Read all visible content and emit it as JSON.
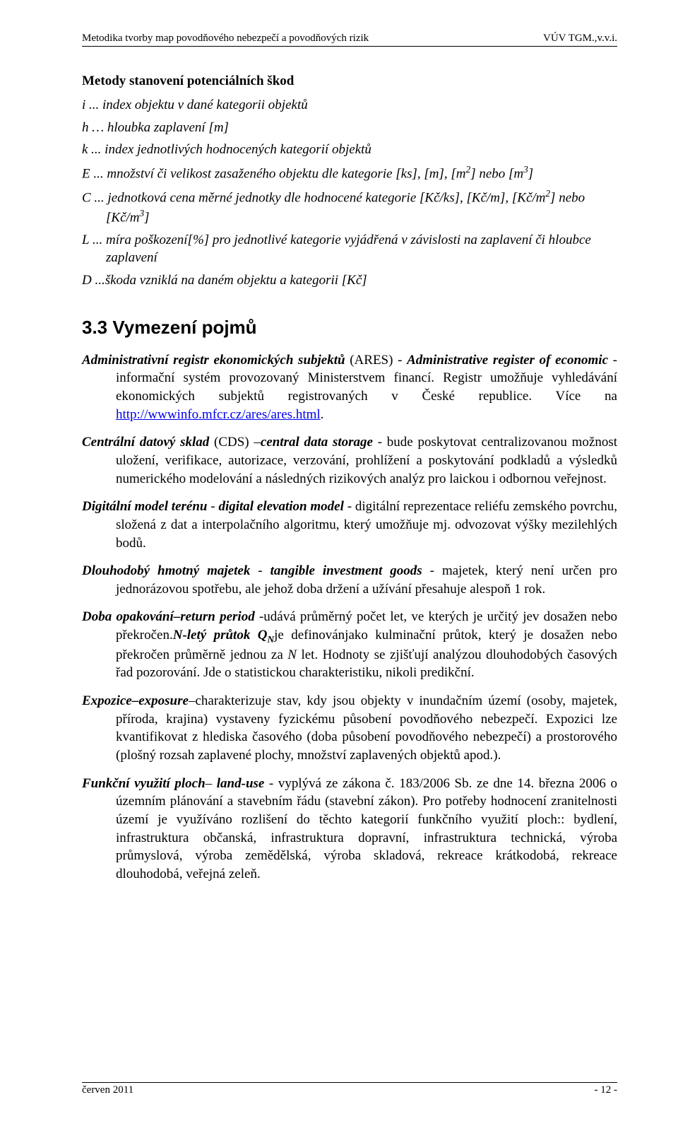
{
  "header": {
    "left": "Metodika tvorby map povodňového nebezpečí a povodňových rizik",
    "right": "VÚV TGM.,v.v.i."
  },
  "footer": {
    "left": "červen 2011",
    "right": "- 12 -"
  },
  "methods_title": "Metody stanovení potenciálních škod",
  "defs": {
    "i": "i ...  index objektu v dané kategorii objektů",
    "h": "h … hloubka zaplavení [m]",
    "k": "k ...  index jednotlivých hodnocených kategorií objektů",
    "E_pre": "E ... množství či velikost zasaženého objektu dle kategorie [ks], [m], [m",
    "E_sup1": "2",
    "E_mid": "] nebo [m",
    "E_sup2": "3",
    "E_post": "]",
    "C_pre": "C ... jednotková cena měrné jednotky dle hodnocené kategorie [Kč/ks], [Kč/m], [Kč/m",
    "C_sup1": "2",
    "C_mid": "] nebo [Kč/m",
    "C_sup2": "3",
    "C_post": "]",
    "L": "L ... míra poškození[%] pro jednotlivé kategorie vyjádřená v závislosti na zaplavení či hloubce zaplavení",
    "D": "D ...škoda vzniklá na daném objektu a kategorii [Kč]"
  },
  "section_heading": "3.3  Vymezení pojmů",
  "p1": {
    "term": "Administrativní registr ekonomických subjektů",
    "abbr_open": " (ARES) - ",
    "eng": "Administrative register of economic",
    "body1": " - informační systém provozovaný Ministerstvem financí. Registr umožňuje vyhledávání ekonomických subjektů registrovaných v České republice. Více na ",
    "link_text": "http://wwwinfo.mfcr.cz/ares/ares.html",
    "body2": "."
  },
  "p2": {
    "term": "Centrální datový sklad",
    "mid": " (CDS) –",
    "eng": "central data storage",
    "body": " - bude poskytovat centralizovanou možnost uložení, verifikace, autorizace, verzování, prohlížení a poskytování podkladů a výsledků numerického modelování a následných rizikových analýz pro laickou i odbornou veřejnost."
  },
  "p3": {
    "term": "Digitální model terénu",
    "mid": " - ",
    "eng": "digital elevation model",
    "body": " - digitální reprezentace reliéfu zemského povrchu, složená z dat a interpolačního algoritmu, který umožňuje mj. odvozovat výšky mezilehlých bodů."
  },
  "p4": {
    "term": "Dlouhodobý hmotný majetek",
    "mid": " - ",
    "eng": "tangible investment goods",
    "body": " - majetek, který není určen pro jednorázovou spotřebu, ale jehož doba držení a užívání přesahuje alespoň 1 rok."
  },
  "p5": {
    "term": "Doba opakování",
    "dash1": "–",
    "eng": "return period",
    "body1": " -udává průměrný počet let, ve kterých je určitý jev dosažen nebo překročen.",
    "nlety": "N-letý průtok Q",
    "sub": "N",
    "body2": "je definovánjako kulminační průtok, který je dosažen nebo překročen průměrně jednou za ",
    "nital": "N",
    "body3": " let. Hodnoty se zjišťují analýzou dlouhodobých časových řad pozorování. Jde o statistickou charakteristiku, nikoli predikční."
  },
  "p6": {
    "term": "Expozice",
    "dash": "–",
    "eng": "exposure",
    "body": "–charakterizuje stav, kdy jsou objekty v inundačním území (osoby, majetek, příroda, krajina) vystaveny fyzickému působení povodňového nebezpečí. Expozici lze kvantifikovat z hlediska časového (doba působení povodňového nebezpečí) a prostorového (plošný rozsah zaplavené plochy, množství zaplavených objektů apod.)."
  },
  "p7": {
    "term": "Funkční využití ploch",
    "mid": "– ",
    "eng": "land-use",
    "body": " - vyplývá ze zákona č. 183/2006 Sb. ze dne 14. března 2006 o územním plánování a stavebním řádu (stavební zákon). Pro potřeby hodnocení zranitelnosti území je využíváno rozlišení do těchto kategorií funkčního využití ploch:: bydlení, infrastruktura občanská, infrastruktura dopravní, infrastruktura technická, výroba průmyslová, výroba zemědělská, výroba skladová, rekreace krátkodobá, rekreace dlouhodobá, veřejná zeleň."
  }
}
